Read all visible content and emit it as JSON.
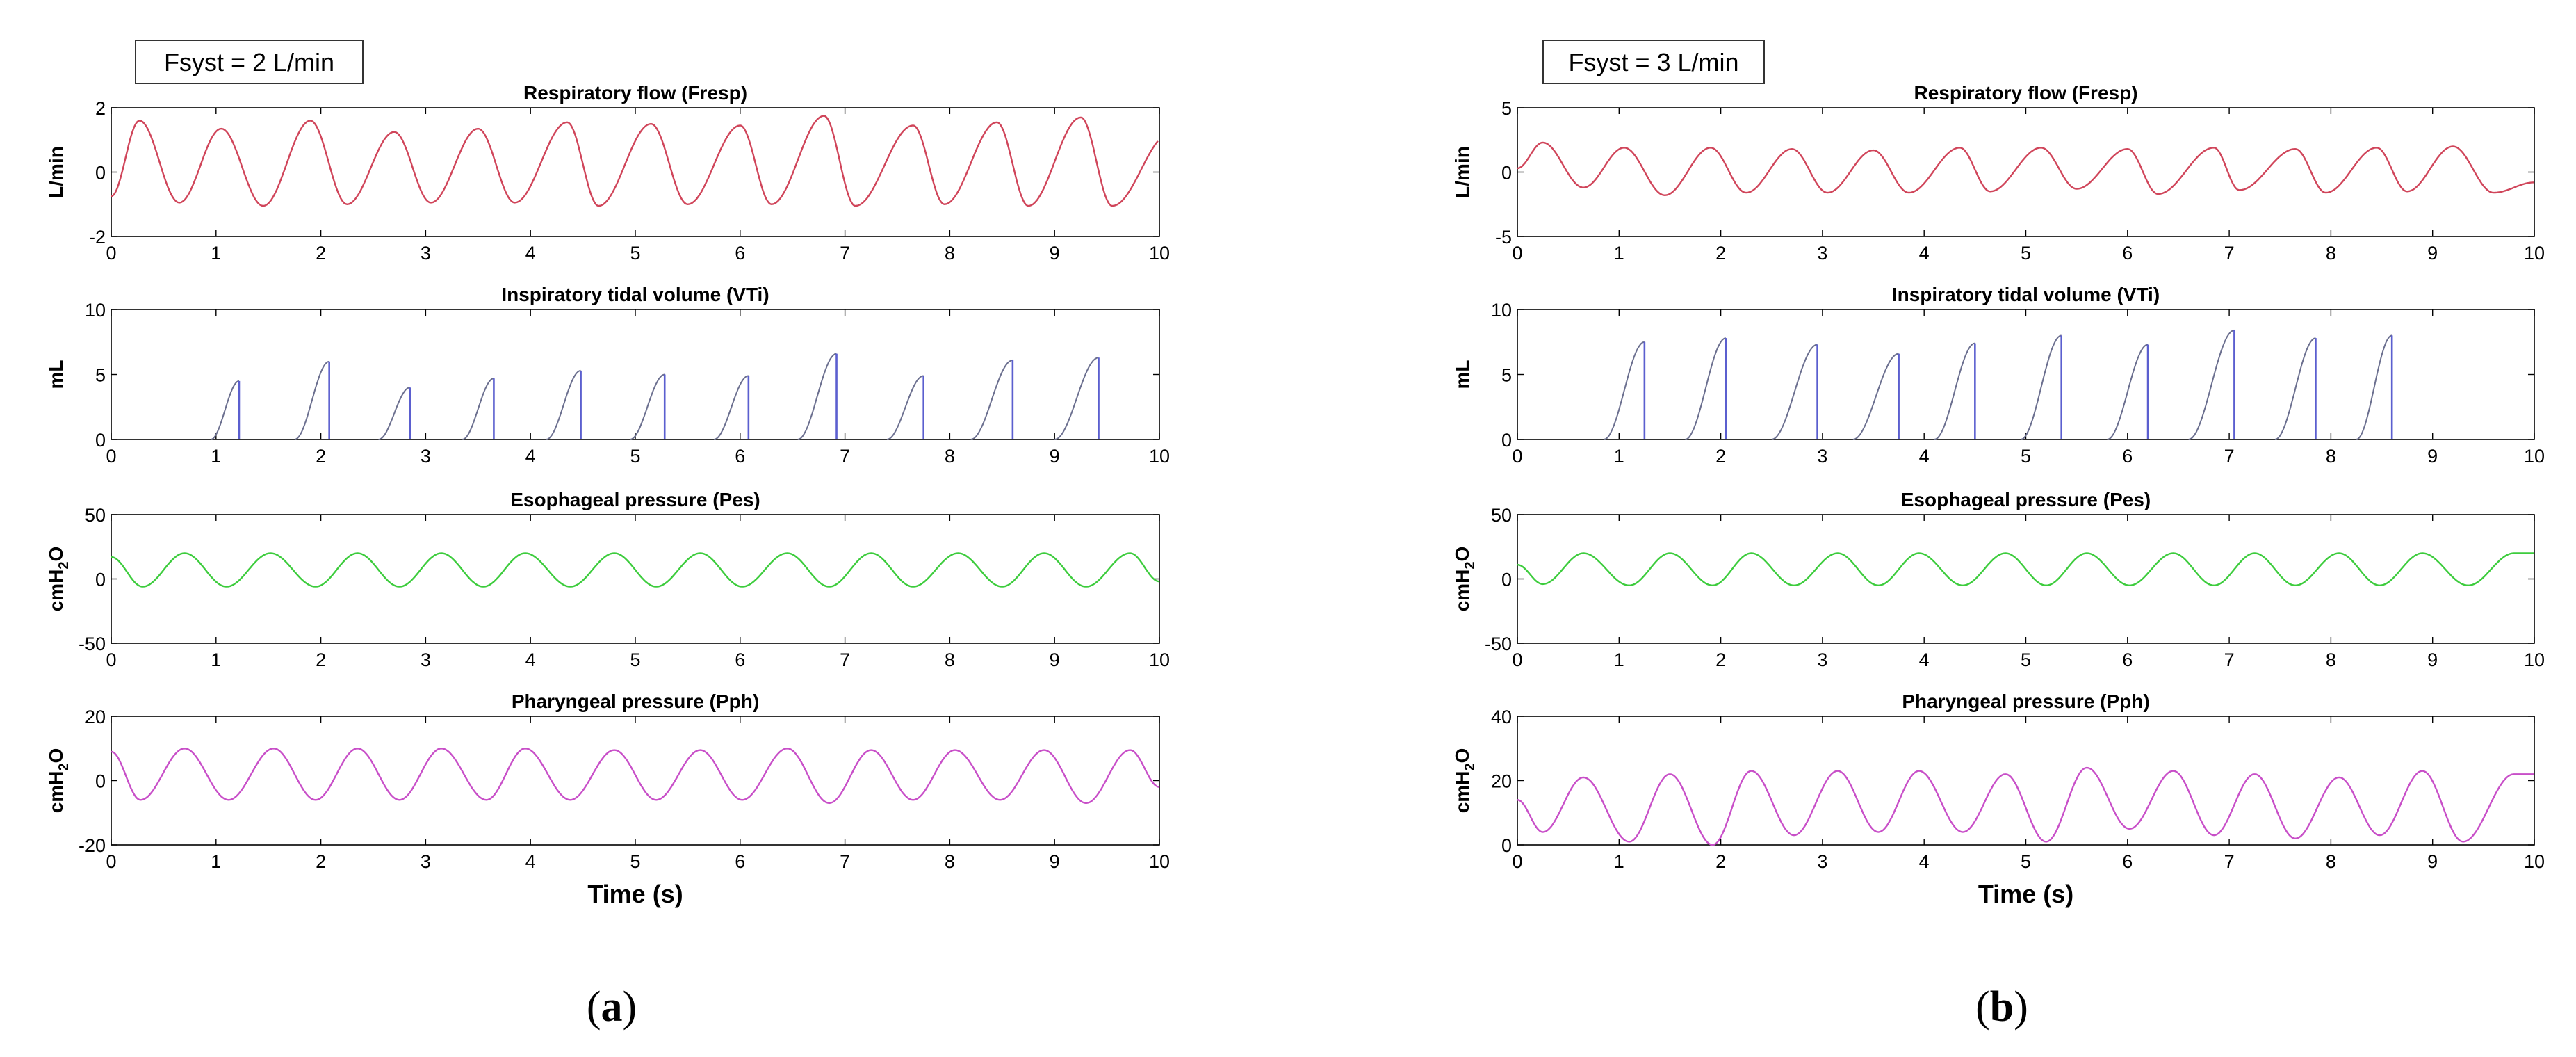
{
  "figure": {
    "panel_a_label": "a",
    "panel_b_label": "b",
    "xlabel": "Time (s)"
  },
  "chart_data": [
    {
      "panel": "a",
      "condition": "Fsyst = 2 L/min",
      "xlabel": "Time (s)",
      "subplots": [
        {
          "type": "line",
          "title": "Respiratory flow (Fresp)",
          "ylabel": "L/min",
          "xlim": [
            0,
            10
          ],
          "ylim": [
            -2,
            2
          ],
          "yticks": [
            -2,
            0,
            2
          ],
          "xticks": [
            0,
            1,
            2,
            3,
            4,
            5,
            6,
            7,
            8,
            9,
            10
          ],
          "color": "#d0455a",
          "peaks": [
            [
              0.27,
              1.6
            ],
            [
              1.05,
              1.35
            ],
            [
              1.9,
              1.6
            ],
            [
              2.7,
              1.25
            ],
            [
              3.5,
              1.35
            ],
            [
              4.35,
              1.55
            ],
            [
              5.15,
              1.5
            ],
            [
              6.0,
              1.45
            ],
            [
              6.8,
              1.75
            ],
            [
              7.65,
              1.45
            ],
            [
              8.45,
              1.55
            ],
            [
              9.25,
              1.7
            ],
            [
              10.1,
              1.2
            ]
          ],
          "troughs": [
            [
              0.0,
              -0.75
            ],
            [
              0.65,
              -0.95
            ],
            [
              1.45,
              -1.05
            ],
            [
              2.25,
              -1.0
            ],
            [
              3.05,
              -0.95
            ],
            [
              3.85,
              -0.95
            ],
            [
              4.65,
              -1.05
            ],
            [
              5.5,
              -1.0
            ],
            [
              6.3,
              -1.0
            ],
            [
              7.1,
              -1.05
            ],
            [
              7.95,
              -1.0
            ],
            [
              8.75,
              -1.05
            ],
            [
              9.55,
              -1.05
            ]
          ]
        },
        {
          "type": "bar-ramps",
          "title": "Inspiratory tidal volume (VTi)",
          "ylabel": "mL",
          "xlim": [
            0,
            10
          ],
          "ylim": [
            0,
            10
          ],
          "yticks": [
            0,
            5,
            10
          ],
          "xticks": [
            0,
            1,
            2,
            3,
            4,
            5,
            6,
            7,
            8,
            9,
            10
          ],
          "color": "#5b5fcf",
          "breaths": [
            [
              0.95,
              1.22,
              4.5
            ],
            [
              1.75,
              2.08,
              6.0
            ],
            [
              2.55,
              2.85,
              4.0
            ],
            [
              3.35,
              3.65,
              4.7
            ],
            [
              4.15,
              4.48,
              5.3
            ],
            [
              4.95,
              5.28,
              5.0
            ],
            [
              5.75,
              6.08,
              4.9
            ],
            [
              6.55,
              6.92,
              6.6
            ],
            [
              7.4,
              7.75,
              4.9
            ],
            [
              8.2,
              8.6,
              6.1
            ],
            [
              9.0,
              9.42,
              6.3
            ]
          ]
        },
        {
          "type": "line",
          "title": "Esophageal pressure (Pes)",
          "ylabel": "cmH2O",
          "xlim": [
            0,
            10
          ],
          "ylim": [
            -50,
            50
          ],
          "yticks": [
            -50,
            0,
            50
          ],
          "xticks": [
            0,
            1,
            2,
            3,
            4,
            5,
            6,
            7,
            8,
            9,
            10
          ],
          "color": "#3dcc3d",
          "peaks": [
            [
              0.7,
              20
            ],
            [
              1.52,
              20
            ],
            [
              2.35,
              20
            ],
            [
              3.15,
              20
            ],
            [
              3.95,
              20
            ],
            [
              4.8,
              20
            ],
            [
              5.62,
              20
            ],
            [
              6.45,
              20
            ],
            [
              7.25,
              20
            ],
            [
              8.08,
              20
            ],
            [
              8.9,
              20
            ],
            [
              9.72,
              20
            ]
          ],
          "troughs": [
            [
              0.0,
              17
            ],
            [
              0.3,
              -6
            ],
            [
              1.1,
              -6
            ],
            [
              1.95,
              -6
            ],
            [
              2.75,
              -6
            ],
            [
              3.55,
              -6
            ],
            [
              4.38,
              -6
            ],
            [
              5.2,
              -6
            ],
            [
              6.02,
              -6
            ],
            [
              6.85,
              -6
            ],
            [
              7.65,
              -6
            ],
            [
              8.5,
              -6
            ],
            [
              9.3,
              -6
            ],
            [
              10.0,
              -2
            ]
          ]
        },
        {
          "type": "line",
          "title": "Pharyngeal pressure (Pph)",
          "ylabel": "cmH2O",
          "xlim": [
            0,
            10
          ],
          "ylim": [
            -20,
            20
          ],
          "yticks": [
            -20,
            0,
            20
          ],
          "xticks": [
            0,
            1,
            2,
            3,
            4,
            5,
            6,
            7,
            8,
            9,
            10
          ],
          "color": "#c84fc8",
          "peaks": [
            [
              0.7,
              10
            ],
            [
              1.55,
              10
            ],
            [
              2.35,
              10
            ],
            [
              3.15,
              10
            ],
            [
              3.95,
              10
            ],
            [
              4.8,
              9.5
            ],
            [
              5.62,
              9.5
            ],
            [
              6.45,
              10
            ],
            [
              7.25,
              9.5
            ],
            [
              8.05,
              9.5
            ],
            [
              8.9,
              9.5
            ],
            [
              9.72,
              9.5
            ]
          ],
          "troughs": [
            [
              0.0,
              9
            ],
            [
              0.28,
              -6
            ],
            [
              1.12,
              -6
            ],
            [
              1.95,
              -6
            ],
            [
              2.75,
              -6
            ],
            [
              3.58,
              -6
            ],
            [
              4.38,
              -6
            ],
            [
              5.2,
              -6
            ],
            [
              6.02,
              -6
            ],
            [
              6.85,
              -7
            ],
            [
              7.65,
              -6
            ],
            [
              8.48,
              -6
            ],
            [
              9.3,
              -7
            ],
            [
              10.0,
              -2
            ]
          ]
        }
      ]
    },
    {
      "panel": "b",
      "condition": "Fsyst = 3 L/min",
      "xlabel": "Time (s)",
      "subplots": [
        {
          "type": "line",
          "title": "Respiratory flow (Fresp)",
          "ylabel": "L/min",
          "xlim": [
            0,
            10
          ],
          "ylim": [
            -5,
            5
          ],
          "yticks": [
            -5,
            0,
            5
          ],
          "xticks": [
            0,
            1,
            2,
            3,
            4,
            5,
            6,
            7,
            8,
            9,
            10
          ],
          "color": "#d0455a",
          "peaks": [
            [
              0.25,
              2.3
            ],
            [
              1.05,
              1.9
            ],
            [
              1.9,
              1.9
            ],
            [
              2.7,
              1.8
            ],
            [
              3.5,
              1.7
            ],
            [
              4.35,
              1.9
            ],
            [
              5.15,
              1.9
            ],
            [
              6.0,
              1.8
            ],
            [
              6.85,
              1.9
            ],
            [
              7.65,
              1.8
            ],
            [
              8.45,
              1.9
            ],
            [
              9.2,
              2.0
            ]
          ],
          "troughs": [
            [
              0.0,
              0.3
            ],
            [
              0.65,
              -1.2
            ],
            [
              1.45,
              -1.8
            ],
            [
              2.25,
              -1.6
            ],
            [
              3.05,
              -1.6
            ],
            [
              3.85,
              -1.6
            ],
            [
              4.65,
              -1.5
            ],
            [
              5.5,
              -1.3
            ],
            [
              6.3,
              -1.7
            ],
            [
              7.1,
              -1.4
            ],
            [
              7.95,
              -1.6
            ],
            [
              8.75,
              -1.5
            ],
            [
              9.6,
              -1.6
            ],
            [
              10.0,
              -0.8
            ]
          ]
        },
        {
          "type": "bar-ramps",
          "title": "Inspiratory tidal volume (VTi)",
          "ylabel": "mL",
          "xlim": [
            0,
            10
          ],
          "ylim": [
            0,
            10
          ],
          "yticks": [
            0,
            5,
            10
          ],
          "xticks": [
            0,
            1,
            2,
            3,
            4,
            5,
            6,
            7,
            8,
            9,
            10
          ],
          "color": "#5b5fcf",
          "breaths": [
            [
              0.85,
              1.25,
              7.5
            ],
            [
              1.65,
              2.05,
              7.8
            ],
            [
              2.5,
              2.95,
              7.3
            ],
            [
              3.3,
              3.75,
              6.6
            ],
            [
              4.1,
              4.5,
              7.4
            ],
            [
              4.95,
              5.35,
              8.0
            ],
            [
              5.8,
              6.2,
              7.3
            ],
            [
              6.6,
              7.05,
              8.4
            ],
            [
              7.45,
              7.85,
              7.8
            ],
            [
              8.25,
              8.6,
              8.0
            ]
          ]
        },
        {
          "type": "line",
          "title": "Esophageal pressure (Pes)",
          "ylabel": "cmH2O",
          "xlim": [
            0,
            10
          ],
          "ylim": [
            -50,
            50
          ],
          "yticks": [
            -50,
            0,
            50
          ],
          "xticks": [
            0,
            1,
            2,
            3,
            4,
            5,
            6,
            7,
            8,
            9,
            10
          ],
          "color": "#3dcc3d",
          "peaks": [
            [
              0.65,
              20
            ],
            [
              1.5,
              20
            ],
            [
              2.3,
              20
            ],
            [
              3.15,
              20
            ],
            [
              3.95,
              20
            ],
            [
              4.8,
              20
            ],
            [
              5.6,
              20
            ],
            [
              6.45,
              20
            ],
            [
              7.25,
              20
            ],
            [
              8.08,
              20
            ],
            [
              8.9,
              20
            ],
            [
              9.8,
              20
            ],
            [
              10.0,
              20
            ]
          ],
          "troughs": [
            [
              0.0,
              11
            ],
            [
              0.25,
              -4
            ],
            [
              1.1,
              -5
            ],
            [
              1.92,
              -5
            ],
            [
              2.72,
              -5
            ],
            [
              3.55,
              -5
            ],
            [
              4.38,
              -5
            ],
            [
              5.2,
              -5
            ],
            [
              6.02,
              -5
            ],
            [
              6.85,
              -5
            ],
            [
              7.65,
              -5
            ],
            [
              8.48,
              -5
            ],
            [
              9.35,
              -5
            ]
          ]
        },
        {
          "type": "line",
          "title": "Pharyngeal pressure (Pph)",
          "ylabel": "cmH2O",
          "xlim": [
            0,
            10
          ],
          "ylim": [
            0,
            40
          ],
          "yticks": [
            0,
            20,
            40
          ],
          "xticks": [
            0,
            1,
            2,
            3,
            4,
            5,
            6,
            7,
            8,
            9,
            10
          ],
          "color": "#c84fc8",
          "peaks": [
            [
              0.65,
              21
            ],
            [
              1.5,
              22
            ],
            [
              2.3,
              23
            ],
            [
              3.15,
              23
            ],
            [
              3.95,
              23
            ],
            [
              4.8,
              22
            ],
            [
              5.6,
              24
            ],
            [
              6.45,
              23
            ],
            [
              7.25,
              22
            ],
            [
              8.08,
              21
            ],
            [
              8.9,
              23
            ],
            [
              9.8,
              22
            ],
            [
              10.0,
              22
            ]
          ],
          "troughs": [
            [
              0.0,
              14
            ],
            [
              0.25,
              4
            ],
            [
              1.1,
              1
            ],
            [
              1.92,
              0
            ],
            [
              2.72,
              3
            ],
            [
              3.55,
              4
            ],
            [
              4.38,
              4
            ],
            [
              5.2,
              1
            ],
            [
              6.02,
              5
            ],
            [
              6.85,
              3
            ],
            [
              7.65,
              2
            ],
            [
              8.48,
              3
            ],
            [
              9.3,
              1
            ]
          ]
        }
      ]
    }
  ]
}
